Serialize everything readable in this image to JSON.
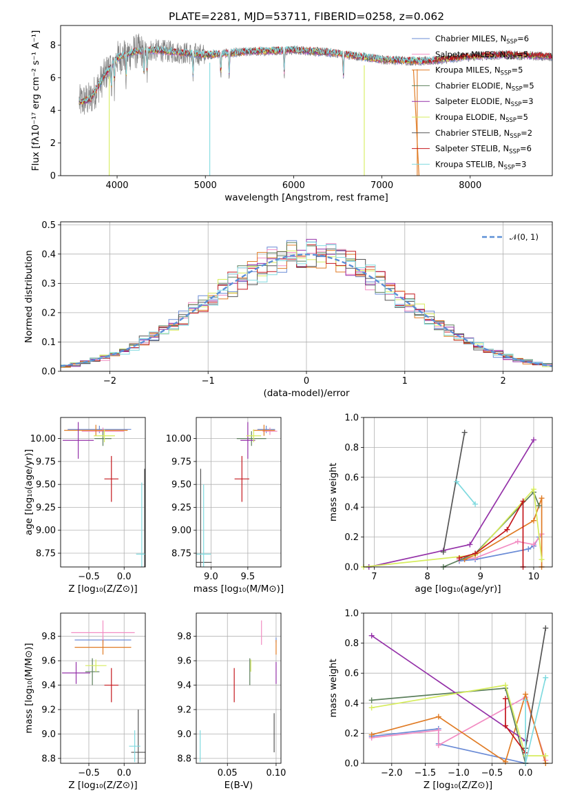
{
  "page": {
    "title": "PLATE=2281, MJD=53711, FIBERID=0258, z=0.062"
  },
  "colors": {
    "cm": "#6a8bd6",
    "sm": "#f28cc2",
    "km": "#e07b24",
    "ce": "#5b7f5b",
    "se": "#9431a8",
    "ke": "#d6ec5c",
    "cs": "#555555",
    "ss": "#c4161c",
    "ks": "#7fdadf",
    "observed": "#808080"
  },
  "panels": {
    "spectrum": {
      "xlabel": "wavelength [Angstrom, rest frame]",
      "ylabel_html": "Flux [fλ10⁻¹⁷ erg cm⁻² s⁻¹ A⁻¹]",
      "xticks": [
        "4000",
        "5000",
        "6000",
        "7000",
        "8000"
      ],
      "yticks": [
        "0",
        "2",
        "4",
        "6",
        "8"
      ]
    },
    "residuals": {
      "xlabel": "(data-model)/error",
      "ylabel": "Normed distribution",
      "xticks": [
        "−2",
        "−1",
        "0",
        "1",
        "2"
      ],
      "yticks": [
        "0.0",
        "0.1",
        "0.2",
        "0.3",
        "0.4",
        "0.5"
      ],
      "normal_label": "𝒩(0, 1)"
    },
    "age_z": {
      "xlabel": "Z [log₁₀(Z/Z⊙)]",
      "ylabel": "age  [log₁₀(age/yr)]",
      "xticks": [
        "−0.5",
        "0.0"
      ],
      "yticks": [
        "8.75",
        "9.00",
        "9.25",
        "9.50",
        "9.75",
        "10.00"
      ]
    },
    "age_mass": {
      "xlabel": "mass [log₁₀(M/M⊙)]",
      "xticks": [
        "9.0",
        "9.5"
      ],
      "yticks": [
        "8.75",
        "9.00",
        "9.25",
        "9.50",
        "9.75",
        "10.00"
      ]
    },
    "mw_age": {
      "xlabel": "age  [log₁₀(age/yr)]",
      "ylabel": "mass weight",
      "xticks": [
        "7",
        "8",
        "9",
        "10"
      ],
      "yticks": [
        "0.0",
        "0.2",
        "0.4",
        "0.6",
        "0.8",
        "1.0"
      ]
    },
    "mass_z": {
      "xlabel": "Z [log₁₀(Z/Z⊙)]",
      "ylabel": "mass [log₁₀(M/M⊙)]",
      "xticks": [
        "−0.5",
        "0.0"
      ],
      "yticks": [
        "8.8",
        "9.0",
        "9.2",
        "9.4",
        "9.6",
        "9.8"
      ]
    },
    "mass_ebv": {
      "xlabel": "E(B-V)",
      "xticks": [
        "0.05",
        "0.10"
      ],
      "yticks": [
        "8.8",
        "9.0",
        "9.2",
        "9.4",
        "9.6",
        "9.8"
      ]
    },
    "mw_z": {
      "xlabel": "Z [log₁₀(Z/Z⊙)]",
      "ylabel": "mass weight",
      "xticks": [
        "−2.0",
        "−1.5",
        "−1.0",
        "−0.5",
        "0.0"
      ],
      "yticks": [
        "0.0",
        "0.2",
        "0.4",
        "0.6",
        "0.8",
        "1.0"
      ]
    }
  },
  "chart_data": [
    {
      "type": "line",
      "panel": "spectrum",
      "title": "PLATE=2281, MJD=53711, FIBERID=0258, z=0.062",
      "xlabel": "wavelength [Angstrom, rest frame]",
      "ylabel": "Flux [fλ10⁻¹⁷ erg cm⁻² s⁻¹ A⁻¹]",
      "xlim": [
        3360,
        8930
      ],
      "ylim": [
        0,
        9.2
      ],
      "legend_placement": "upper-right",
      "series": [
        {
          "name": "Chabrier MILES, N_SSP=6",
          "color_key": "cm"
        },
        {
          "name": "Salpeter MILES, N_SSP=5",
          "color_key": "sm"
        },
        {
          "name": "Kroupa MILES, N_SSP=5",
          "color_key": "km"
        },
        {
          "name": "Chabrier ELODIE, N_SSP=5",
          "color_key": "ce"
        },
        {
          "name": "Salpeter ELODIE, N_SSP=3",
          "color_key": "se"
        },
        {
          "name": "Kroupa ELODIE, N_SSP=5",
          "color_key": "ke"
        },
        {
          "name": "Chabrier STELIB, N_SSP=2",
          "color_key": "cs"
        },
        {
          "name": "Salpeter STELIB, N_SSP=6",
          "color_key": "ss"
        },
        {
          "name": "Kroupa STELIB, N_SSP=3",
          "color_key": "ks"
        }
      ],
      "continuum": [
        [
          3570,
          4.5
        ],
        [
          3700,
          4.7
        ],
        [
          3800,
          5.6
        ],
        [
          3900,
          6.5
        ],
        [
          4000,
          7.2
        ],
        [
          4100,
          7.4
        ],
        [
          4200,
          7.6
        ],
        [
          4400,
          7.7
        ],
        [
          4600,
          7.6
        ],
        [
          5000,
          7.4
        ],
        [
          5500,
          7.6
        ],
        [
          6000,
          7.7
        ],
        [
          6500,
          7.5
        ],
        [
          7000,
          7.1
        ],
        [
          7500,
          7.0
        ],
        [
          8000,
          7.3
        ],
        [
          8400,
          7.4
        ],
        [
          8930,
          7.3
        ]
      ],
      "model_dips": [
        {
          "x": 3911,
          "y": 0.0,
          "color_key": "ke"
        },
        {
          "x": 5050,
          "y": 0.0,
          "color_key": "ks"
        },
        {
          "x": 6800,
          "y": 0.0,
          "color_key": "ke"
        },
        {
          "x": 7400,
          "y": 0.0,
          "color_key": "km"
        }
      ],
      "model_endpoints": [
        {
          "color_key": "km",
          "x_end": 7420
        },
        {
          "color_key": "ks",
          "x_end": 7600
        }
      ]
    },
    {
      "type": "bar",
      "panel": "residuals",
      "xlabel": "(data-model)/error",
      "ylabel": "Normed distribution",
      "xlim": [
        -2.5,
        2.5
      ],
      "ylim": [
        0,
        0.51
      ],
      "bin_width": 0.1,
      "normal_pdf": {
        "mu": 0,
        "sigma": 1,
        "name": "𝒩(0, 1)"
      },
      "legend_placement": "upper-right"
    },
    {
      "type": "scatter",
      "panel": "age_z",
      "xlim": [
        -0.9,
        0.3
      ],
      "ylim": [
        8.6,
        10.23
      ],
      "points": [
        {
          "c": "cm",
          "x": -0.35,
          "xe": 0.45,
          "y": 10.1,
          "ye": 0.04
        },
        {
          "c": "sm",
          "x": -0.3,
          "xe": 0.3,
          "y": 10.08,
          "ye": 0.04
        },
        {
          "c": "km",
          "x": -0.4,
          "xe": 0.45,
          "y": 10.09,
          "ye": 0.06
        },
        {
          "c": "ce",
          "x": -0.3,
          "xe": 0.12,
          "y": 10.0,
          "ye": 0.08
        },
        {
          "c": "se",
          "x": -0.65,
          "xe": 0.22,
          "y": 9.98,
          "ye": 0.2
        },
        {
          "c": "ke",
          "x": -0.28,
          "xe": 0.15,
          "y": 10.03,
          "ye": 0.07
        },
        {
          "c": "cs",
          "x": 0.29,
          "xe": 0.0,
          "y": 8.65,
          "ye": 1.02
        },
        {
          "c": "ss",
          "x": -0.18,
          "xe": 0.1,
          "y": 9.56,
          "ye": 0.25
        },
        {
          "c": "ks",
          "x": 0.25,
          "xe": 0.08,
          "y": 8.74,
          "ye": 0.78
        }
      ]
    },
    {
      "type": "scatter",
      "panel": "age_mass",
      "xlim": [
        8.8,
        9.95
      ],
      "ylim": [
        8.6,
        10.23
      ],
      "points": [
        {
          "c": "cm",
          "x": 9.75,
          "xe": 0.12,
          "y": 10.1,
          "ye": 0.04
        },
        {
          "c": "sm",
          "x": 9.8,
          "xe": 0.1,
          "y": 10.08,
          "ye": 0.04
        },
        {
          "c": "km",
          "x": 9.72,
          "xe": 0.15,
          "y": 10.09,
          "ye": 0.06
        },
        {
          "c": "ce",
          "x": 9.55,
          "xe": 0.2,
          "y": 10.0,
          "ye": 0.08
        },
        {
          "c": "se",
          "x": 9.5,
          "xe": 0.1,
          "y": 9.98,
          "ye": 0.2
        },
        {
          "c": "ke",
          "x": 9.58,
          "xe": 0.1,
          "y": 10.03,
          "ye": 0.07
        },
        {
          "c": "cs",
          "x": 8.86,
          "xe": 0.15,
          "y": 8.65,
          "ye": 1.02
        },
        {
          "c": "ss",
          "x": 9.42,
          "xe": 0.1,
          "y": 9.56,
          "ye": 0.25
        },
        {
          "c": "ks",
          "x": 8.9,
          "xe": 0.1,
          "y": 8.74,
          "ye": 0.76
        }
      ]
    },
    {
      "type": "line",
      "panel": "mw_age",
      "xlim": [
        6.8,
        10.35
      ],
      "ylim": [
        0,
        1.0
      ],
      "series": [
        {
          "c": "cm",
          "points": [
            [
              8.6,
              0.04
            ],
            [
              8.9,
              0.05
            ],
            [
              9.9,
              0.12
            ],
            [
              10.0,
              0.14
            ],
            [
              10.1,
              0.2
            ]
          ]
        },
        {
          "c": "sm",
          "points": [
            [
              8.6,
              0.05
            ],
            [
              8.9,
              0.06
            ],
            [
              9.7,
              0.17
            ],
            [
              10.0,
              0.15
            ],
            [
              10.15,
              0.22
            ]
          ]
        },
        {
          "c": "km",
          "points": [
            [
              8.7,
              0.05
            ],
            [
              8.9,
              0.08
            ],
            [
              10.0,
              0.31
            ],
            [
              10.15,
              0.46
            ],
            [
              10.15,
              0.0
            ]
          ]
        },
        {
          "c": "ce",
          "points": [
            [
              8.3,
              0.0
            ],
            [
              8.9,
              0.09
            ],
            [
              10.0,
              0.5
            ],
            [
              10.1,
              0.41
            ]
          ]
        },
        {
          "c": "se",
          "points": [
            [
              6.9,
              0.0
            ],
            [
              8.3,
              0.11
            ],
            [
              8.8,
              0.15
            ],
            [
              10.0,
              0.85
            ]
          ]
        },
        {
          "c": "ke",
          "points": [
            [
              6.8,
              0.0
            ],
            [
              8.9,
              0.08
            ],
            [
              10.0,
              0.52
            ],
            [
              10.15,
              0.05
            ]
          ]
        },
        {
          "c": "cs",
          "points": [
            [
              8.3,
              0.1
            ],
            [
              8.7,
              0.9
            ]
          ]
        },
        {
          "c": "ss",
          "points": [
            [
              8.6,
              0.06
            ],
            [
              8.9,
              0.09
            ],
            [
              9.5,
              0.25
            ],
            [
              9.8,
              0.44
            ],
            [
              9.8,
              0.0
            ]
          ]
        },
        {
          "c": "ks",
          "points": [
            [
              8.55,
              0.57
            ],
            [
              8.9,
              0.42
            ]
          ]
        }
      ]
    },
    {
      "type": "scatter",
      "panel": "mass_z",
      "xlim": [
        -0.9,
        0.3
      ],
      "ylim": [
        8.76,
        9.99
      ],
      "points": [
        {
          "c": "cm",
          "x": -0.3,
          "xe": 0.4,
          "y": 9.77,
          "ye": 0.02
        },
        {
          "c": "sm",
          "x": -0.3,
          "xe": 0.45,
          "y": 9.83,
          "ye": 0.1
        },
        {
          "c": "km",
          "x": -0.3,
          "xe": 0.4,
          "y": 9.71,
          "ye": 0.06
        },
        {
          "c": "ce",
          "x": -0.45,
          "xe": 0.1,
          "y": 9.51,
          "ye": 0.11
        },
        {
          "c": "se",
          "x": -0.68,
          "xe": 0.2,
          "y": 9.5,
          "ye": 0.09
        },
        {
          "c": "ke",
          "x": -0.4,
          "xe": 0.15,
          "y": 9.56,
          "ye": 0.05
        },
        {
          "c": "cs",
          "x": 0.2,
          "xe": 0.1,
          "y": 8.85,
          "ye": 0.35
        },
        {
          "c": "ss",
          "x": -0.18,
          "xe": 0.1,
          "y": 9.4,
          "ye": 0.14
        },
        {
          "c": "ks",
          "x": 0.15,
          "xe": 0.08,
          "y": 8.9,
          "ye": 0.13
        }
      ]
    },
    {
      "type": "scatter",
      "panel": "mass_ebv",
      "xlim": [
        0.018,
        0.105
      ],
      "ylim": [
        8.76,
        9.99
      ],
      "points": [
        {
          "c": "cm",
          "x": 0.1,
          "y": 9.77,
          "ye": 0.02
        },
        {
          "c": "sm",
          "x": 0.085,
          "y": 9.83,
          "ye": 0.1
        },
        {
          "c": "km",
          "x": 0.1,
          "y": 9.71,
          "ye": 0.06
        },
        {
          "c": "ce",
          "x": 0.073,
          "y": 9.51,
          "ye": 0.11
        },
        {
          "c": "se",
          "x": 0.1,
          "y": 9.5,
          "ye": 0.09
        },
        {
          "c": "ke",
          "x": 0.074,
          "y": 9.56,
          "ye": 0.05
        },
        {
          "c": "cs",
          "x": 0.098,
          "y": 9.01,
          "ye": 0.16
        },
        {
          "c": "ss",
          "x": 0.057,
          "y": 9.4,
          "ye": 0.14
        },
        {
          "c": "ks",
          "x": 0.022,
          "y": 8.9,
          "ye": 0.13
        }
      ]
    },
    {
      "type": "line",
      "panel": "mw_z",
      "xlim": [
        -2.42,
        0.4
      ],
      "ylim": [
        0,
        1.0
      ],
      "series": [
        {
          "c": "cm",
          "points": [
            [
              -2.3,
              0.18
            ],
            [
              -1.3,
              0.23
            ],
            [
              -1.3,
              0.13
            ],
            [
              0.0,
              0.0
            ]
          ]
        },
        {
          "c": "sm",
          "points": [
            [
              -2.3,
              0.17
            ],
            [
              -1.3,
              0.22
            ],
            [
              -1.3,
              0.12
            ],
            [
              0.0,
              0.44
            ],
            [
              0.3,
              0.02
            ]
          ]
        },
        {
          "c": "km",
          "points": [
            [
              -2.3,
              0.19
            ],
            [
              -1.3,
              0.31
            ],
            [
              -0.3,
              0.01
            ],
            [
              0.0,
              0.46
            ],
            [
              0.3,
              0.0
            ]
          ]
        },
        {
          "c": "ce",
          "points": [
            [
              -2.3,
              0.42
            ],
            [
              -0.3,
              0.5
            ],
            [
              0.0,
              0.0
            ]
          ]
        },
        {
          "c": "se",
          "points": [
            [
              -2.3,
              0.85
            ],
            [
              0.0,
              0.15
            ]
          ]
        },
        {
          "c": "ke",
          "points": [
            [
              -2.3,
              0.37
            ],
            [
              -0.3,
              0.52
            ],
            [
              0.0,
              0.05
            ],
            [
              0.3,
              0.05
            ]
          ]
        },
        {
          "c": "cs",
          "points": [
            [
              0.0,
              0.1
            ],
            [
              0.3,
              0.9
            ]
          ]
        },
        {
          "c": "ss",
          "points": [
            [
              -0.3,
              0.43
            ],
            [
              -0.3,
              0.25
            ],
            [
              0.0,
              0.07
            ],
            [
              0.0,
              0.0
            ]
          ]
        },
        {
          "c": "ks",
          "points": [
            [
              0.0,
              0.42
            ],
            [
              0.0,
              0.0
            ],
            [
              0.3,
              0.57
            ]
          ]
        }
      ]
    }
  ]
}
